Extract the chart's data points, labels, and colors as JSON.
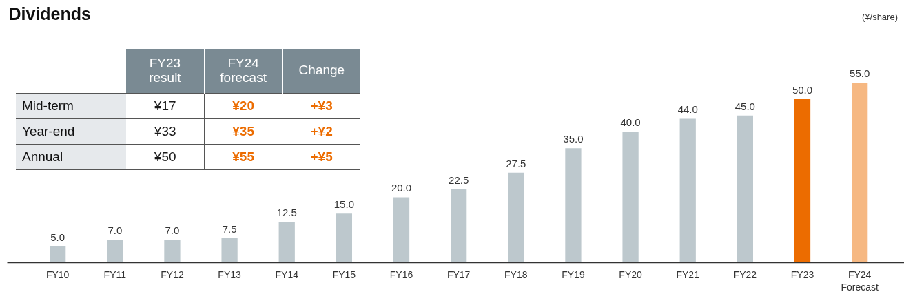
{
  "chart_data": [
    {
      "type": "bar",
      "title": "Dividends",
      "ylabel": "(¥/share)",
      "categories": [
        "FY10",
        "FY11",
        "FY12",
        "FY13",
        "FY14",
        "FY15",
        "FY16",
        "FY17",
        "FY18",
        "FY19",
        "FY20",
        "FY21",
        "FY22",
        "FY23",
        "FY24\nForecast"
      ],
      "values": [
        5.0,
        7.0,
        7.0,
        7.5,
        12.5,
        15.0,
        20.0,
        22.5,
        27.5,
        35.0,
        40.0,
        44.0,
        45.0,
        50.0,
        55.0
      ],
      "colors": [
        "#bdc8cd",
        "#bdc8cd",
        "#bdc8cd",
        "#bdc8cd",
        "#bdc8cd",
        "#bdc8cd",
        "#bdc8cd",
        "#bdc8cd",
        "#bdc8cd",
        "#bdc8cd",
        "#bdc8cd",
        "#bdc8cd",
        "#bdc8cd",
        "#ec6c00",
        "#f6b882"
      ],
      "value_labels": [
        "5.0",
        "7.0",
        "7.0",
        "7.5",
        "12.5",
        "15.0",
        "20.0",
        "22.5",
        "27.5",
        "35.0",
        "40.0",
        "44.0",
        "45.0",
        "50.0",
        "55.0"
      ],
      "tick_labels": "x"
    },
    {
      "type": "other",
      "categories": [
        "FY23\nresult",
        "FY24\nforecast",
        "Change"
      ],
      "y_categories": [
        "Mid-term",
        "Year-end",
        "Annual"
      ],
      "cell_labels": [
        [
          "¥17",
          "¥20",
          "+¥3"
        ],
        [
          "¥33",
          "¥35",
          "+¥2"
        ],
        [
          "¥50",
          "¥55",
          "+¥5"
        ]
      ],
      "colors": [
        "#1a1a1a",
        "#ec6c00",
        "#ec6c00"
      ]
    }
  ]
}
